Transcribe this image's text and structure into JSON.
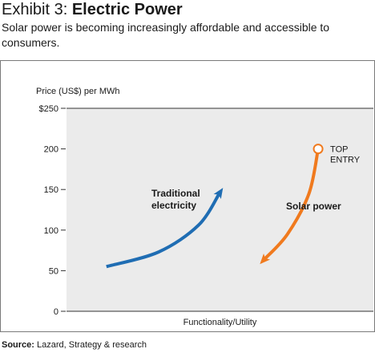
{
  "header": {
    "exhibit": "Exhibit 3:",
    "title": "Electric Power",
    "subtitle": "Solar power is becoming increasingly affordable and accessible to consumers."
  },
  "source": {
    "label": "Source:",
    "text": "Lazard, Strategy & research"
  },
  "colors": {
    "plot_background": "#ebebeb",
    "traditional": "#1f6db3",
    "solar": "#f07a1e"
  },
  "chart_data": {
    "type": "line",
    "title": "",
    "xlabel": "Functionality/Utility",
    "ylabel": "Price (US$) per MWh",
    "ylim": [
      0,
      250
    ],
    "xlim": [
      0,
      10
    ],
    "yticks": [
      {
        "value": 250,
        "label": "$250"
      },
      {
        "value": 200,
        "label": "200"
      },
      {
        "value": 150,
        "label": "150"
      },
      {
        "value": 100,
        "label": "100"
      },
      {
        "value": 50,
        "label": "50"
      },
      {
        "value": 0,
        "label": "0"
      }
    ],
    "grid": false,
    "series": [
      {
        "name": "Traditional electricity",
        "name_lines": [
          "Traditional",
          "electricity"
        ],
        "color": "#1f6db3",
        "arrow": "end",
        "x": [
          1.3,
          3.0,
          4.3,
          5.1
        ],
        "y": [
          55,
          73,
          106,
          152
        ]
      },
      {
        "name": "Solar power",
        "name_lines": [
          "Solar power"
        ],
        "color": "#f07a1e",
        "arrow": "end",
        "x": [
          8.2,
          7.9,
          7.2,
          6.3
        ],
        "y": [
          200,
          145,
          95,
          58
        ]
      }
    ],
    "annotations": [
      {
        "series": 1,
        "point": 0,
        "marker": "circle",
        "lines": [
          "TOP",
          "ENTRY"
        ]
      }
    ]
  }
}
